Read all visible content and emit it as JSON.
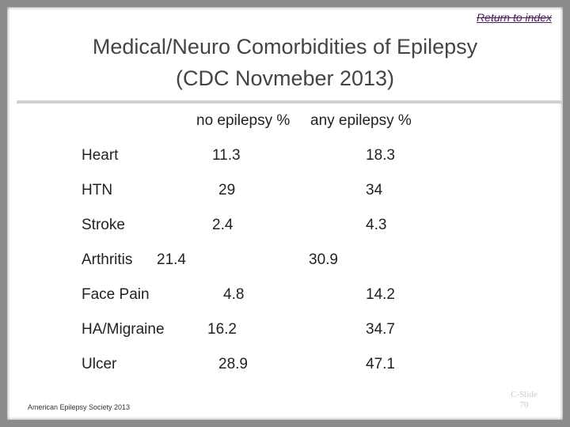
{
  "header": {
    "link": "Return to index"
  },
  "title": [
    "Medical/Neuro Comorbidities of Epilepsy",
    "(CDC Novmeber 2013)"
  ],
  "table": {
    "columns": [
      "no epilepsy %",
      "any epilepsy %"
    ],
    "rows": [
      [
        "Heart",
        "11.3",
        "18.3"
      ],
      [
        "HTN",
        "29",
        "34"
      ],
      [
        "Stroke",
        "2.4",
        "4.3"
      ],
      [
        "Arthritis",
        "21.4",
        "30.9"
      ],
      [
        "Face Pain",
        "4.8",
        "14.2"
      ],
      [
        "HA/Migraine",
        "16.2",
        "34.7"
      ],
      [
        "Ulcer",
        "28.9",
        "47.1"
      ]
    ]
  },
  "footer": "American Epilepsy Society 2013",
  "slide_number": [
    "C-Slide",
    "70"
  ]
}
